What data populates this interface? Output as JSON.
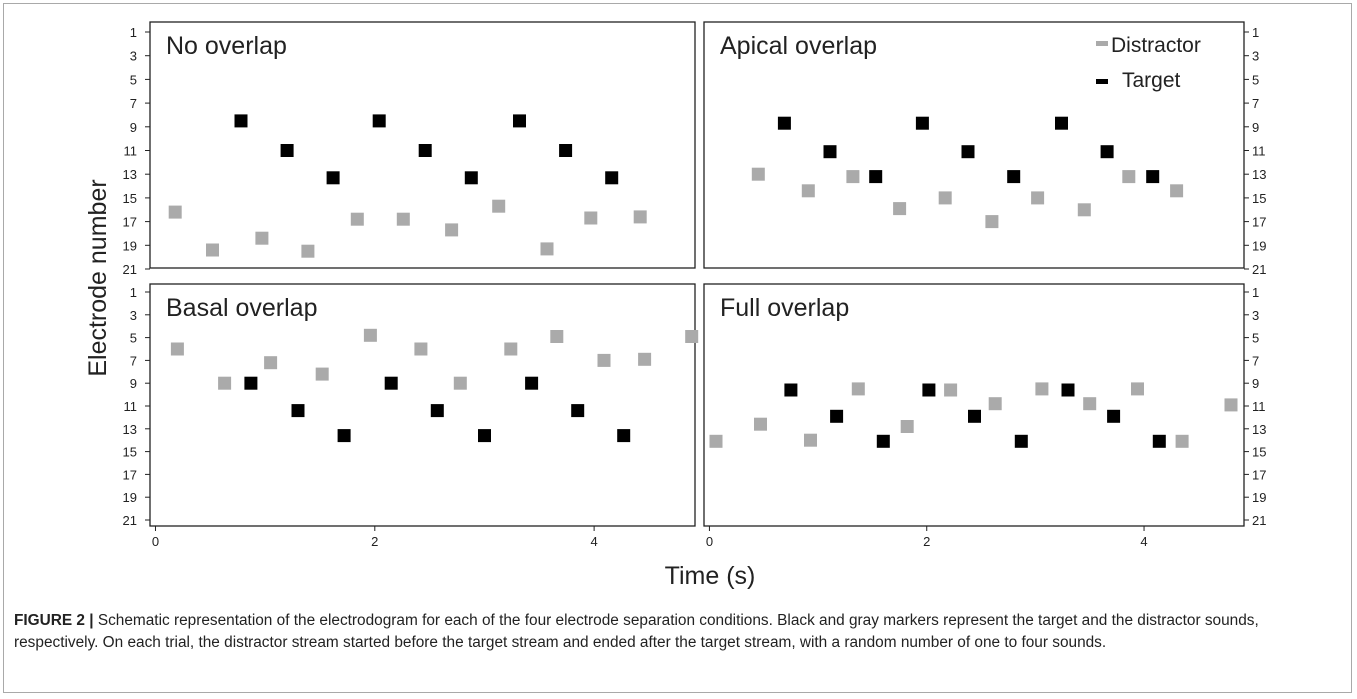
{
  "colors": {
    "target": "#000000",
    "distractor": "#aaaaaa",
    "axis": "#222222",
    "frame": "#a9a9a9"
  },
  "chart_data": {
    "type": "scatter",
    "xlabel": "Time (s)",
    "ylabel": "Electrode number",
    "xlim": [
      -0.05,
      4.92
    ],
    "ylim": [
      22,
      0
    ],
    "y_ticks": [
      1,
      3,
      5,
      7,
      9,
      11,
      13,
      15,
      17,
      19,
      21
    ],
    "x_ticks": [
      0,
      2,
      4
    ],
    "legend": {
      "placement": "top-right",
      "entries": [
        "Distractor",
        "Target"
      ]
    },
    "panels": [
      {
        "title": "No overlap",
        "series": [
          {
            "name": "Target",
            "points": [
              [
                0.78,
                8.5
              ],
              [
                1.2,
                11
              ],
              [
                1.62,
                13.3
              ],
              [
                2.04,
                8.5
              ],
              [
                2.46,
                11
              ],
              [
                2.88,
                13.3
              ],
              [
                3.32,
                8.5
              ],
              [
                3.74,
                11
              ],
              [
                4.16,
                13.3
              ]
            ]
          },
          {
            "name": "Distractor",
            "points": [
              [
                0.18,
                16.2
              ],
              [
                0.52,
                19.4
              ],
              [
                0.97,
                18.4
              ],
              [
                1.39,
                19.5
              ],
              [
                1.84,
                16.8
              ],
              [
                2.26,
                16.8
              ],
              [
                2.7,
                17.7
              ],
              [
                3.13,
                15.7
              ],
              [
                3.57,
                19.3
              ],
              [
                3.97,
                16.7
              ],
              [
                4.42,
                16.6
              ]
            ]
          }
        ]
      },
      {
        "title": "Apical overlap",
        "series": [
          {
            "name": "Target",
            "points": [
              [
                0.69,
                8.7
              ],
              [
                1.11,
                11.1
              ],
              [
                1.53,
                13.2
              ],
              [
                1.96,
                8.7
              ],
              [
                2.38,
                11.1
              ],
              [
                2.8,
                13.2
              ],
              [
                3.24,
                8.7
              ],
              [
                3.66,
                11.1
              ],
              [
                4.08,
                13.2
              ]
            ]
          },
          {
            "name": "Distractor",
            "points": [
              [
                0.45,
                13.0
              ],
              [
                0.91,
                14.4
              ],
              [
                1.32,
                13.2
              ],
              [
                1.75,
                15.9
              ],
              [
                2.17,
                15.0
              ],
              [
                2.6,
                17.0
              ],
              [
                3.02,
                15.0
              ],
              [
                3.45,
                16.0
              ],
              [
                3.86,
                13.2
              ],
              [
                4.3,
                14.4
              ]
            ]
          }
        ]
      },
      {
        "title": "Basal overlap",
        "series": [
          {
            "name": "Target",
            "points": [
              [
                0.87,
                9.0
              ],
              [
                1.3,
                11.4
              ],
              [
                1.72,
                13.6
              ],
              [
                2.15,
                9.0
              ],
              [
                2.57,
                11.4
              ],
              [
                3.0,
                13.6
              ],
              [
                3.43,
                9.0
              ],
              [
                3.85,
                11.4
              ],
              [
                4.27,
                13.6
              ]
            ]
          },
          {
            "name": "Distractor",
            "points": [
              [
                0.2,
                6.0
              ],
              [
                0.63,
                9.0
              ],
              [
                1.05,
                7.2
              ],
              [
                1.52,
                8.2
              ],
              [
                1.96,
                4.8
              ],
              [
                2.42,
                6.0
              ],
              [
                2.78,
                9.0
              ],
              [
                3.24,
                6.0
              ],
              [
                3.66,
                4.9
              ],
              [
                4.09,
                7.0
              ],
              [
                4.46,
                6.9
              ],
              [
                4.89,
                4.9
              ]
            ]
          }
        ]
      },
      {
        "title": "Full overlap",
        "series": [
          {
            "name": "Target",
            "points": [
              [
                0.75,
                9.6
              ],
              [
                1.17,
                11.9
              ],
              [
                1.6,
                14.1
              ],
              [
                2.02,
                9.6
              ],
              [
                2.44,
                11.9
              ],
              [
                2.87,
                14.1
              ],
              [
                3.3,
                9.6
              ],
              [
                3.72,
                11.9
              ],
              [
                4.14,
                14.1
              ]
            ]
          },
          {
            "name": "Distractor",
            "points": [
              [
                0.06,
                14.1
              ],
              [
                0.47,
                12.6
              ],
              [
                0.93,
                14.0
              ],
              [
                1.37,
                9.5
              ],
              [
                1.82,
                12.8
              ],
              [
                2.22,
                9.6
              ],
              [
                2.63,
                10.8
              ],
              [
                3.06,
                9.5
              ],
              [
                3.5,
                10.8
              ],
              [
                3.94,
                9.5
              ],
              [
                4.35,
                14.1
              ],
              [
                4.8,
                10.9
              ]
            ]
          }
        ]
      }
    ]
  },
  "caption": {
    "label": "FIGURE 2 |",
    "text": "Schematic representation of the electrodogram for each of the four electrode separation conditions. Black and gray markers represent the target and the distractor sounds, respectively. On each trial, the distractor stream started before the target stream and ended after the target stream, with a random number of one to four sounds."
  }
}
